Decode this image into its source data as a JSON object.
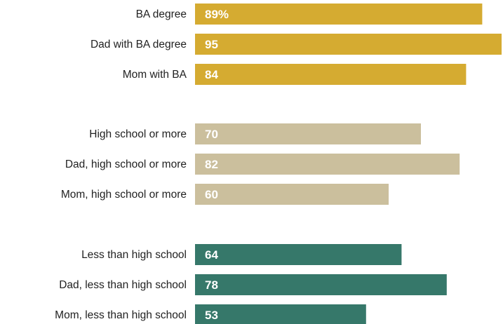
{
  "chart_data": {
    "type": "bar",
    "orientation": "horizontal",
    "xlim": [
      0,
      100
    ],
    "groups": [
      {
        "color": "#d5ab31",
        "bars": [
          {
            "label": "BA degree",
            "value": 89,
            "display": "89%"
          },
          {
            "label": "Dad with BA degree",
            "value": 95,
            "display": "95"
          },
          {
            "label": "Mom with BA",
            "value": 84,
            "display": "84"
          }
        ]
      },
      {
        "color": "#cbbf9d",
        "bars": [
          {
            "label": "High school or more",
            "value": 70,
            "display": "70"
          },
          {
            "label": "Dad, high school or more",
            "value": 82,
            "display": "82"
          },
          {
            "label": "Mom, high school or more",
            "value": 60,
            "display": "60"
          }
        ]
      },
      {
        "color": "#36786a",
        "bars": [
          {
            "label": "Less than high school",
            "value": 64,
            "display": "64"
          },
          {
            "label": "Dad, less than high school",
            "value": 78,
            "display": "78"
          },
          {
            "label": "Mom, less than high school",
            "value": 53,
            "display": "53"
          }
        ]
      }
    ]
  }
}
